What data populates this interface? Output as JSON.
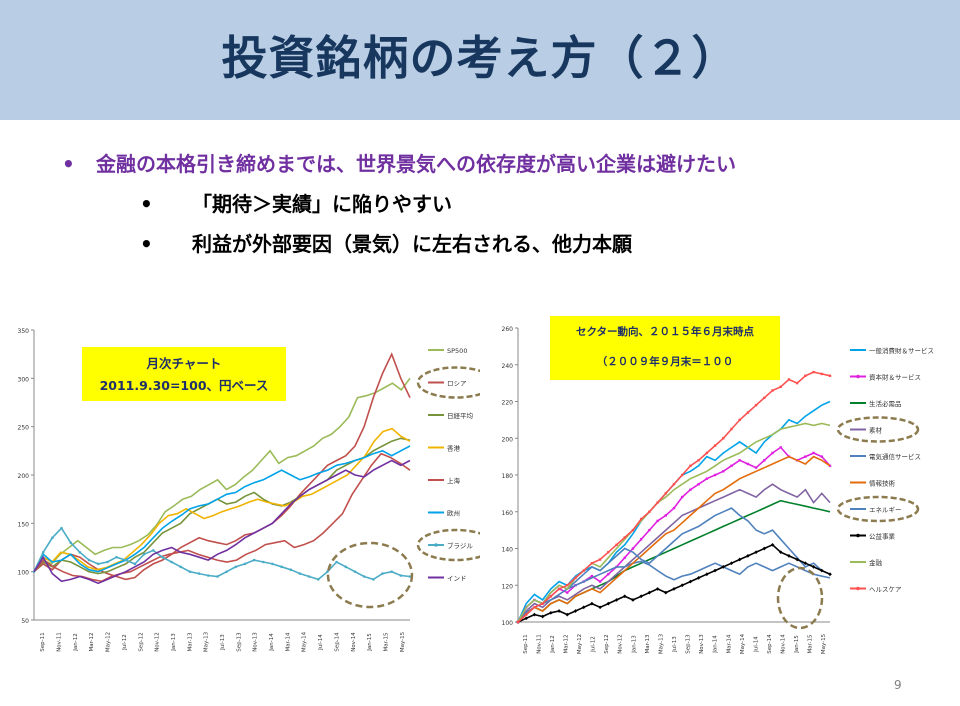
{
  "slide": {
    "title": "投資銘柄の考え方（２）",
    "bullets": [
      {
        "mark": "•",
        "text": "金融の本格引き締めまでは、世界景気への依存度が高い企業は避けたい"
      },
      {
        "mark": "•",
        "text": "「期待＞実績」に陥りやすい"
      },
      {
        "mark": "•",
        "text": "利益が外部要因（景気）に左右される、他力本願"
      }
    ],
    "page_number": "9"
  },
  "chart_data": [
    {
      "type": "line",
      "callout": [
        "月次チャート",
        "2011.9.30=100、円ベース"
      ],
      "ylim": [
        50,
        350
      ],
      "yticks": [
        50,
        100,
        150,
        200,
        250,
        300,
        350
      ],
      "xticks": [
        "Sep-11",
        "Nov-11",
        "Jan-12",
        "Mar-12",
        "May-12",
        "Jul-12",
        "Sep-12",
        "Nov-12",
        "Jan-13",
        "Mar-13",
        "May-13",
        "Jul-13",
        "Sep-13",
        "Nov-13",
        "Jan-14",
        "Mar-14",
        "May-14",
        "Jul-14",
        "Sep-14",
        "Nov-14",
        "Jan-15",
        "Mar-15",
        "May-15"
      ],
      "circled": [
        "ロシア",
        "ブラジル"
      ],
      "series": [
        {
          "name": "SP500",
          "color": "#9bbb59",
          "marker": "none",
          "values": [
            100,
            112,
            108,
            118,
            125,
            132,
            125,
            118,
            122,
            125,
            125,
            128,
            132,
            138,
            148,
            162,
            168,
            175,
            178,
            185,
            190,
            195,
            185,
            190,
            198,
            205,
            215,
            225,
            212,
            218,
            220,
            225,
            230,
            238,
            242,
            250,
            260,
            280,
            282,
            285,
            290,
            295,
            288,
            300
          ]
        },
        {
          "name": "ロシア",
          "color": "#c0504d",
          "marker": "none",
          "values": [
            100,
            108,
            102,
            112,
            118,
            115,
            108,
            102,
            98,
            95,
            92,
            94,
            102,
            108,
            112,
            118,
            125,
            130,
            135,
            132,
            130,
            128,
            132,
            138,
            140,
            145,
            150,
            158,
            168,
            180,
            190,
            200,
            210,
            215,
            220,
            230,
            250,
            280,
            305,
            325,
            300,
            280
          ]
        },
        {
          "name": "日経平均",
          "color": "#77933c",
          "marker": "none",
          "values": [
            100,
            110,
            105,
            112,
            110,
            105,
            100,
            98,
            100,
            104,
            108,
            115,
            120,
            130,
            140,
            145,
            150,
            160,
            165,
            170,
            175,
            170,
            172,
            178,
            182,
            175,
            170,
            168,
            172,
            178,
            185,
            190,
            195,
            205,
            210,
            215,
            218,
            225,
            230,
            235,
            238,
            236
          ]
        },
        {
          "name": "香港",
          "color": "#f0b400",
          "marker": "none",
          "values": [
            100,
            115,
            110,
            120,
            118,
            112,
            105,
            102,
            104,
            108,
            112,
            120,
            128,
            138,
            150,
            158,
            160,
            165,
            160,
            155,
            158,
            162,
            165,
            168,
            172,
            175,
            172,
            170,
            168,
            172,
            178,
            180,
            185,
            190,
            195,
            200,
            210,
            220,
            235,
            245,
            248,
            240,
            235
          ]
        },
        {
          "name": "上海",
          "color": "#c0504d",
          "marker": "none",
          "values": [
            100,
            112,
            105,
            100,
            96,
            95,
            92,
            90,
            95,
            98,
            100,
            105,
            110,
            115,
            118,
            120,
            122,
            118,
            115,
            112,
            110,
            112,
            118,
            122,
            128,
            130,
            132,
            125,
            128,
            132,
            140,
            150,
            160,
            180,
            195,
            210,
            222,
            218,
            212,
            205
          ]
        },
        {
          "name": "欧州",
          "color": "#00a2e8",
          "marker": "none",
          "values": [
            100,
            118,
            110,
            112,
            118,
            108,
            102,
            100,
            104,
            108,
            112,
            118,
            125,
            135,
            145,
            152,
            158,
            165,
            168,
            170,
            175,
            180,
            182,
            188,
            192,
            195,
            200,
            205,
            200,
            195,
            198,
            202,
            205,
            210,
            212,
            215,
            218,
            222,
            225,
            220,
            225,
            230
          ]
        },
        {
          "name": "ブラジル",
          "color": "#4bacc6",
          "marker": "dot",
          "values": [
            100,
            120,
            135,
            145,
            130,
            120,
            112,
            108,
            110,
            115,
            112,
            108,
            118,
            122,
            115,
            110,
            105,
            100,
            98,
            96,
            95,
            100,
            105,
            108,
            112,
            110,
            108,
            105,
            102,
            98,
            95,
            92,
            100,
            110,
            105,
            100,
            95,
            92,
            98,
            100,
            96,
            95
          ]
        },
        {
          "name": "インド",
          "color": "#7030a0",
          "marker": "none",
          "values": [
            100,
            115,
            98,
            90,
            92,
            95,
            92,
            88,
            92,
            96,
            100,
            105,
            110,
            118,
            122,
            125,
            120,
            118,
            115,
            112,
            118,
            122,
            128,
            135,
            140,
            145,
            150,
            160,
            170,
            178,
            185,
            190,
            195,
            200,
            205,
            200,
            198,
            205,
            210,
            215,
            210,
            215
          ]
        }
      ]
    },
    {
      "type": "line",
      "callout": [
        "セクター動向、２０１５年６月末時点",
        "（２００９年９月末＝１００"
      ],
      "ylim": [
        100,
        260
      ],
      "yticks": [
        100,
        120,
        140,
        160,
        180,
        200,
        220,
        240,
        260
      ],
      "xticks": [
        "Sep-11",
        "Nov-11",
        "Jan-12",
        "Mar-12",
        "May-12",
        "Jul-12",
        "Sep-12",
        "Nov-12",
        "Jan-13",
        "Mar-13",
        "May-13",
        "Jul-13",
        "Sep-13",
        "Nov-13",
        "Jan-14",
        "Mar-14",
        "May-14",
        "Jul-14",
        "Sep-14",
        "Nov-14",
        "Jan-15",
        "Mar-15",
        "May-15"
      ],
      "circled": [
        "素材",
        "エネルギー"
      ],
      "series": [
        {
          "name": "一般消費財＆サービス",
          "color": "#00a2e8",
          "marker": "none",
          "values": [
            100,
            110,
            115,
            112,
            118,
            122,
            120,
            125,
            128,
            130,
            128,
            132,
            138,
            142,
            148,
            155,
            160,
            165,
            170,
            175,
            180,
            182,
            185,
            190,
            188,
            192,
            195,
            198,
            195,
            192,
            198,
            202,
            205,
            210,
            208,
            212,
            215,
            218,
            220
          ]
        },
        {
          "name": "資本財＆サービス",
          "color": "#e020e0",
          "marker": "square",
          "values": [
            100,
            108,
            112,
            110,
            114,
            118,
            116,
            120,
            122,
            125,
            122,
            126,
            130,
            135,
            140,
            145,
            150,
            155,
            158,
            162,
            168,
            172,
            175,
            178,
            180,
            182,
            185,
            188,
            186,
            184,
            188,
            192,
            195,
            190,
            188,
            190,
            192,
            190,
            185
          ]
        },
        {
          "name": "生活必需品",
          "color": "#00802b",
          "marker": "none",
          "values": [
            100,
            105,
            108,
            106,
            110,
            112,
            110,
            114,
            116,
            118,
            120,
            122,
            125,
            128,
            130,
            132,
            134,
            136,
            138,
            140,
            142,
            144,
            146,
            148,
            150,
            152,
            154,
            156,
            158,
            160,
            162,
            164,
            166,
            165,
            164,
            163,
            162,
            161,
            160
          ]
        },
        {
          "name": "素材",
          "color": "#8064a2",
          "marker": "none",
          "values": [
            100,
            106,
            110,
            108,
            112,
            114,
            112,
            115,
            118,
            120,
            118,
            122,
            126,
            130,
            134,
            138,
            142,
            146,
            150,
            154,
            158,
            160,
            162,
            164,
            166,
            168,
            170,
            172,
            170,
            168,
            172,
            175,
            172,
            170,
            168,
            172,
            165,
            170,
            165
          ]
        },
        {
          "name": "電気通信サービス",
          "color": "#4f81bd",
          "marker": "none",
          "values": [
            100,
            105,
            108,
            110,
            112,
            115,
            118,
            120,
            122,
            124,
            126,
            128,
            130,
            130,
            132,
            133,
            131,
            128,
            125,
            123,
            125,
            126,
            128,
            130,
            132,
            130,
            128,
            126,
            130,
            132,
            130,
            128,
            130,
            132,
            130,
            128,
            126,
            125,
            124
          ]
        },
        {
          "name": "情報技術",
          "color": "#e46c0a",
          "marker": "none",
          "values": [
            100,
            104,
            108,
            106,
            110,
            112,
            110,
            114,
            116,
            118,
            116,
            120,
            124,
            128,
            132,
            136,
            140,
            144,
            148,
            150,
            154,
            158,
            162,
            166,
            170,
            172,
            175,
            178,
            180,
            182,
            184,
            186,
            188,
            190,
            188,
            186,
            190,
            188,
            185
          ]
        },
        {
          "name": "エネルギー",
          "color": "#4f81bd",
          "marker": "none",
          "values": [
            100,
            108,
            112,
            110,
            116,
            120,
            118,
            122,
            126,
            130,
            128,
            132,
            136,
            140,
            138,
            134,
            132,
            136,
            140,
            144,
            148,
            150,
            152,
            155,
            158,
            160,
            162,
            158,
            155,
            150,
            148,
            150,
            145,
            140,
            135,
            130,
            132,
            128,
            126
          ]
        },
        {
          "name": "公益事業",
          "color": "#000000",
          "marker": "diamond",
          "values": [
            100,
            102,
            104,
            103,
            105,
            106,
            104,
            106,
            108,
            110,
            108,
            110,
            112,
            114,
            112,
            114,
            116,
            118,
            116,
            118,
            120,
            122,
            124,
            126,
            128,
            130,
            132,
            134,
            136,
            138,
            140,
            142,
            138,
            136,
            134,
            132,
            130,
            128,
            126
          ]
        },
        {
          "name": "金融",
          "color": "#9bbb59",
          "marker": "none",
          "values": [
            100,
            108,
            112,
            110,
            116,
            120,
            118,
            124,
            128,
            132,
            130,
            135,
            140,
            145,
            150,
            155,
            160,
            165,
            168,
            172,
            175,
            178,
            180,
            182,
            185,
            188,
            190,
            192,
            195,
            198,
            200,
            202,
            205,
            206,
            207,
            208,
            207,
            208,
            207
          ]
        },
        {
          "name": "ヘルスケア",
          "color": "#ff5050",
          "marker": "square",
          "values": [
            100,
            104,
            108,
            110,
            114,
            118,
            120,
            124,
            128,
            132,
            134,
            138,
            142,
            146,
            150,
            156,
            160,
            165,
            170,
            175,
            180,
            185,
            188,
            192,
            196,
            200,
            205,
            210,
            214,
            218,
            222,
            226,
            228,
            232,
            230,
            234,
            236,
            235,
            234
          ]
        }
      ]
    }
  ]
}
